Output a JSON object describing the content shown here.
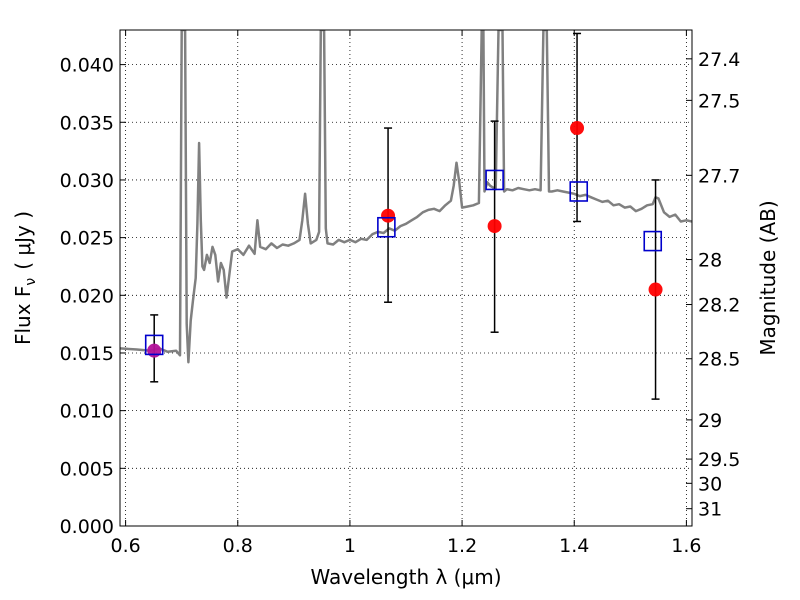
{
  "chart_data": {
    "type": "scatter",
    "xlabel": "Wavelength  λ (μm)",
    "ylabel": "Flux  F",
    "ylabel_sub": "ν",
    "ylabel_unit": "( μJy )",
    "y2label": "Magnitude (AB)",
    "xlim": [
      0.59,
      1.61
    ],
    "ylim": [
      0.0,
      0.043
    ],
    "grid": true,
    "xticks": [
      0.6,
      0.8,
      1.0,
      1.2,
      1.4,
      1.6
    ],
    "xtick_labels": [
      "0.6",
      "0.8",
      "1",
      "1.2",
      "1.4",
      "1.6"
    ],
    "yticks": [
      0.0,
      0.005,
      0.01,
      0.015,
      0.02,
      0.025,
      0.03,
      0.035,
      0.04
    ],
    "ytick_labels": [
      "0.000",
      "0.005",
      "0.010",
      "0.015",
      "0.020",
      "0.025",
      "0.030",
      "0.035",
      "0.040"
    ],
    "y2ticks": [
      {
        "label": "27.4",
        "flux": 0.0405
      },
      {
        "label": "27.5",
        "flux": 0.0369
      },
      {
        "label": "27.7",
        "flux": 0.0304
      },
      {
        "label": "28",
        "flux": 0.0231
      },
      {
        "label": "28.2",
        "flux": 0.0192
      },
      {
        "label": "28.5",
        "flux": 0.0145
      },
      {
        "label": "29",
        "flux": 0.0092
      },
      {
        "label": "29.5",
        "flux": 0.0058
      },
      {
        "label": "30",
        "flux": 0.0037
      },
      {
        "label": "31",
        "flux": 0.0015
      }
    ],
    "series": [
      {
        "type": "line",
        "color": "#808080",
        "x": [
          0.59,
          0.62,
          0.645,
          0.66,
          0.675,
          0.69,
          0.697,
          0.7,
          0.703,
          0.706,
          0.709,
          0.712,
          0.716,
          0.72,
          0.725,
          0.728,
          0.731,
          0.734,
          0.737,
          0.74,
          0.745,
          0.75,
          0.755,
          0.76,
          0.765,
          0.77,
          0.775,
          0.78,
          0.79,
          0.8,
          0.81,
          0.82,
          0.83,
          0.835,
          0.84,
          0.85,
          0.86,
          0.87,
          0.88,
          0.89,
          0.9,
          0.91,
          0.915,
          0.92,
          0.925,
          0.93,
          0.94,
          0.945,
          0.948,
          0.951,
          0.954,
          0.957,
          0.96,
          0.97,
          0.98,
          0.99,
          1.0,
          1.01,
          1.02,
          1.03,
          1.04,
          1.05,
          1.06,
          1.07,
          1.08,
          1.09,
          1.1,
          1.11,
          1.12,
          1.13,
          1.14,
          1.15,
          1.16,
          1.17,
          1.18,
          1.185,
          1.19,
          1.195,
          1.2,
          1.21,
          1.22,
          1.23,
          1.235,
          1.238,
          1.24,
          1.245,
          1.25,
          1.26,
          1.265,
          1.27,
          1.272,
          1.275,
          1.28,
          1.29,
          1.3,
          1.31,
          1.32,
          1.33,
          1.34,
          1.345,
          1.348,
          1.351,
          1.355,
          1.36,
          1.37,
          1.38,
          1.39,
          1.4,
          1.41,
          1.42,
          1.43,
          1.44,
          1.45,
          1.46,
          1.47,
          1.48,
          1.49,
          1.5,
          1.51,
          1.52,
          1.53,
          1.54,
          1.545,
          1.55,
          1.56,
          1.57,
          1.58,
          1.59,
          1.6,
          1.61
        ],
        "y": [
          0.0154,
          0.0153,
          0.0152,
          0.0154,
          0.0151,
          0.0152,
          0.0148,
          0.043,
          0.043,
          0.043,
          0.0175,
          0.0142,
          0.0178,
          0.0195,
          0.0215,
          0.0262,
          0.0332,
          0.0265,
          0.0225,
          0.0222,
          0.0235,
          0.0228,
          0.0242,
          0.0235,
          0.0212,
          0.0228,
          0.0222,
          0.0198,
          0.0238,
          0.024,
          0.0235,
          0.0243,
          0.0236,
          0.0265,
          0.0242,
          0.024,
          0.0245,
          0.0241,
          0.0244,
          0.0243,
          0.0245,
          0.0248,
          0.0265,
          0.0288,
          0.0262,
          0.0245,
          0.0248,
          0.0255,
          0.043,
          0.043,
          0.043,
          0.0258,
          0.0245,
          0.0244,
          0.0248,
          0.0246,
          0.0248,
          0.0246,
          0.0249,
          0.0248,
          0.0253,
          0.0255,
          0.0254,
          0.0258,
          0.0256,
          0.026,
          0.0262,
          0.0265,
          0.0268,
          0.0272,
          0.0274,
          0.0275,
          0.0273,
          0.0278,
          0.0282,
          0.0295,
          0.0315,
          0.0298,
          0.0276,
          0.0277,
          0.0278,
          0.028,
          0.043,
          0.043,
          0.029,
          0.0298,
          0.0295,
          0.0292,
          0.043,
          0.043,
          0.043,
          0.029,
          0.0292,
          0.0291,
          0.0293,
          0.0292,
          0.0291,
          0.0292,
          0.0291,
          0.043,
          0.043,
          0.043,
          0.029,
          0.029,
          0.0291,
          0.029,
          0.0289,
          0.0288,
          0.0286,
          0.0287,
          0.0285,
          0.0283,
          0.0281,
          0.0282,
          0.0278,
          0.0279,
          0.0276,
          0.0277,
          0.0273,
          0.0275,
          0.0278,
          0.0279,
          0.0285,
          0.0284,
          0.0272,
          0.0268,
          0.027,
          0.0264,
          0.0265,
          0.0264
        ]
      },
      {
        "type": "error_points",
        "marker": "circle",
        "color": "#ff0000",
        "x": [
          0.651,
          1.068,
          1.258,
          1.405,
          1.545
        ],
        "y": [
          0.0152,
          0.0269,
          0.026,
          0.0345,
          0.0205
        ],
        "yerr_low": [
          0.0125,
          0.0194,
          0.0168,
          0.0264,
          0.011
        ],
        "yerr_high": [
          0.0183,
          0.0345,
          0.0351,
          0.0427,
          0.03
        ]
      },
      {
        "type": "points",
        "marker": "square",
        "color": "#0000cc",
        "x": [
          0.651,
          1.065,
          1.258,
          1.408,
          1.54
        ],
        "y": [
          0.0157,
          0.0259,
          0.03,
          0.029,
          0.0247
        ]
      }
    ]
  }
}
